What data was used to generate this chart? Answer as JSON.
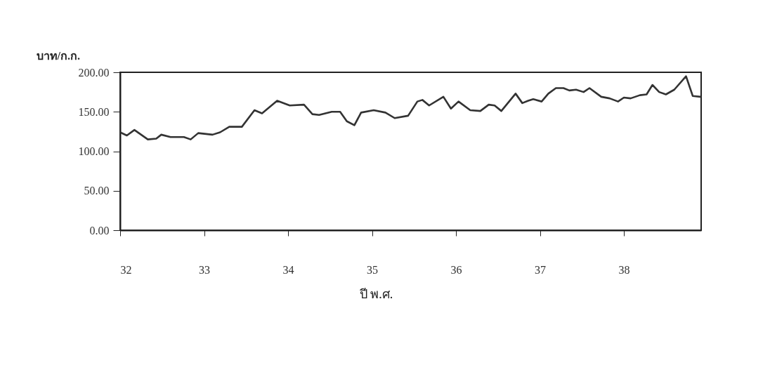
{
  "chart_data": {
    "type": "line",
    "xlabel": "ปี พ.ศ.",
    "ylabel": "บาท/ก.ก.",
    "x": [
      32,
      32.08,
      32.17,
      32.33,
      32.43,
      32.49,
      32.6,
      32.76,
      32.84,
      32.93,
      33.1,
      33.19,
      33.3,
      33.45,
      33.6,
      33.69,
      33.87,
      34.02,
      34.19,
      34.29,
      34.37,
      34.52,
      34.62,
      34.7,
      34.79,
      34.87,
      35.02,
      35.16,
      35.27,
      35.43,
      35.54,
      35.6,
      35.68,
      35.85,
      35.94,
      36.03,
      36.17,
      36.29,
      36.39,
      36.46,
      36.54,
      36.71,
      36.79,
      36.86,
      36.92,
      37.02,
      37.1,
      37.19,
      37.28,
      37.35,
      37.43,
      37.52,
      37.59,
      37.73,
      37.83,
      37.93,
      38.0,
      38.08,
      38.19,
      38.27,
      38.34,
      38.42,
      38.5,
      38.6,
      38.74,
      38.82,
      38.91
    ],
    "series": [
      {
        "color": "#333333",
        "values": [
          124,
          120,
          127,
          115,
          116,
          121,
          118,
          118,
          115,
          123,
          121,
          124,
          131,
          131,
          152,
          148,
          164,
          158,
          159,
          147,
          146,
          150,
          150,
          138,
          133,
          149,
          152,
          149,
          142,
          145,
          163,
          165,
          158,
          169,
          154,
          163,
          152,
          151,
          159,
          158,
          151,
          173,
          161,
          164,
          166,
          163,
          173,
          180,
          180,
          177,
          178,
          175,
          180,
          169,
          167,
          163,
          168,
          167,
          171,
          172,
          184,
          175,
          172,
          178,
          195,
          170,
          169
        ]
      }
    ],
    "xlim": [
      32,
      38.92
    ],
    "xticks": [
      32,
      33,
      34,
      35,
      36,
      37,
      38
    ],
    "ylim": [
      0,
      200
    ],
    "yticks": [
      {
        "value": 0,
        "label": "0.00"
      },
      {
        "value": 50,
        "label": "50.00"
      },
      {
        "value": 100,
        "label": "100.00"
      },
      {
        "value": 150,
        "label": "150.00"
      },
      {
        "value": 200,
        "label": "200.00"
      }
    ],
    "grid": false,
    "marker": "none",
    "line_style": "solid"
  }
}
